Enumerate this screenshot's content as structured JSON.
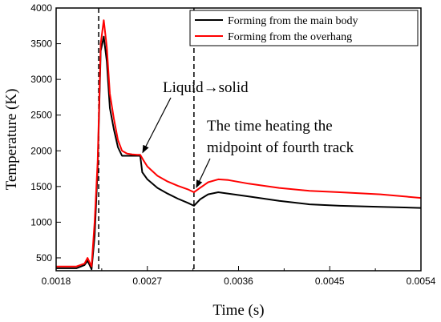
{
  "chart_data": {
    "type": "line",
    "title": "",
    "xlabel": "Time (s)",
    "ylabel": "Temperature (K)",
    "xlim": [
      0.0018,
      0.0054
    ],
    "ylim": [
      320,
      4000
    ],
    "xticks": [
      0.0018,
      0.0027,
      0.0036,
      0.0045,
      0.0054
    ],
    "xtick_labels": [
      "0.0018",
      "0.0027",
      "0.0036",
      "0.0045",
      "0.0054"
    ],
    "yticks": [
      500,
      1000,
      1500,
      2000,
      2500,
      3000,
      3500,
      4000
    ],
    "ytick_labels": [
      "500",
      "1000",
      "1500",
      "2000",
      "2500",
      "3000",
      "3500",
      "4000"
    ],
    "grid": false,
    "legend": "top-right",
    "series": [
      {
        "name": "Forming from the main body",
        "color": "#000000",
        "x": [
          0.0018,
          0.002,
          0.00208,
          0.00211,
          0.00215,
          0.00218,
          0.00221,
          0.00224,
          0.00227,
          0.0023,
          0.00233,
          0.00237,
          0.00241,
          0.00245,
          0.0025,
          0.00255,
          0.0026,
          0.00263,
          0.00265,
          0.0027,
          0.0028,
          0.0029,
          0.003,
          0.0031,
          0.00316,
          0.00322,
          0.0033,
          0.0034,
          0.0035,
          0.0037,
          0.004,
          0.0043,
          0.0046,
          0.005,
          0.0054
        ],
        "y": [
          355,
          355,
          400,
          460,
          340,
          800,
          1750,
          3400,
          3600,
          3250,
          2600,
          2300,
          2050,
          1930,
          1930,
          1930,
          1930,
          1930,
          1700,
          1600,
          1480,
          1400,
          1330,
          1270,
          1230,
          1320,
          1390,
          1420,
          1400,
          1360,
          1300,
          1250,
          1230,
          1215,
          1200
        ]
      },
      {
        "name": "Forming from the overhang",
        "color": "#ff0000",
        "x": [
          0.0018,
          0.002,
          0.00208,
          0.00211,
          0.00215,
          0.00218,
          0.00221,
          0.00224,
          0.00227,
          0.0023,
          0.00233,
          0.00237,
          0.00241,
          0.00245,
          0.0025,
          0.00255,
          0.0026,
          0.00263,
          0.00266,
          0.0027,
          0.0028,
          0.0029,
          0.003,
          0.0031,
          0.00316,
          0.00322,
          0.0033,
          0.0034,
          0.0035,
          0.0037,
          0.004,
          0.0043,
          0.0046,
          0.005,
          0.0054
        ],
        "y": [
          380,
          380,
          420,
          500,
          380,
          1000,
          1850,
          3500,
          3830,
          3450,
          2800,
          2450,
          2150,
          2000,
          1960,
          1950,
          1945,
          1945,
          1870,
          1780,
          1650,
          1570,
          1510,
          1460,
          1420,
          1480,
          1560,
          1600,
          1590,
          1540,
          1480,
          1440,
          1420,
          1390,
          1340
        ]
      }
    ],
    "annotations": [
      {
        "text": "Liquid→solid",
        "x": 0.00263,
        "y": 1930
      },
      {
        "text": "The time heating the midpoint of fourth track",
        "line1": "The time heating the",
        "line2": "midpoint of fourth track",
        "x": 0.00316,
        "y": 1420
      }
    ],
    "vlines": [
      0.00222,
      0.00316
    ]
  }
}
